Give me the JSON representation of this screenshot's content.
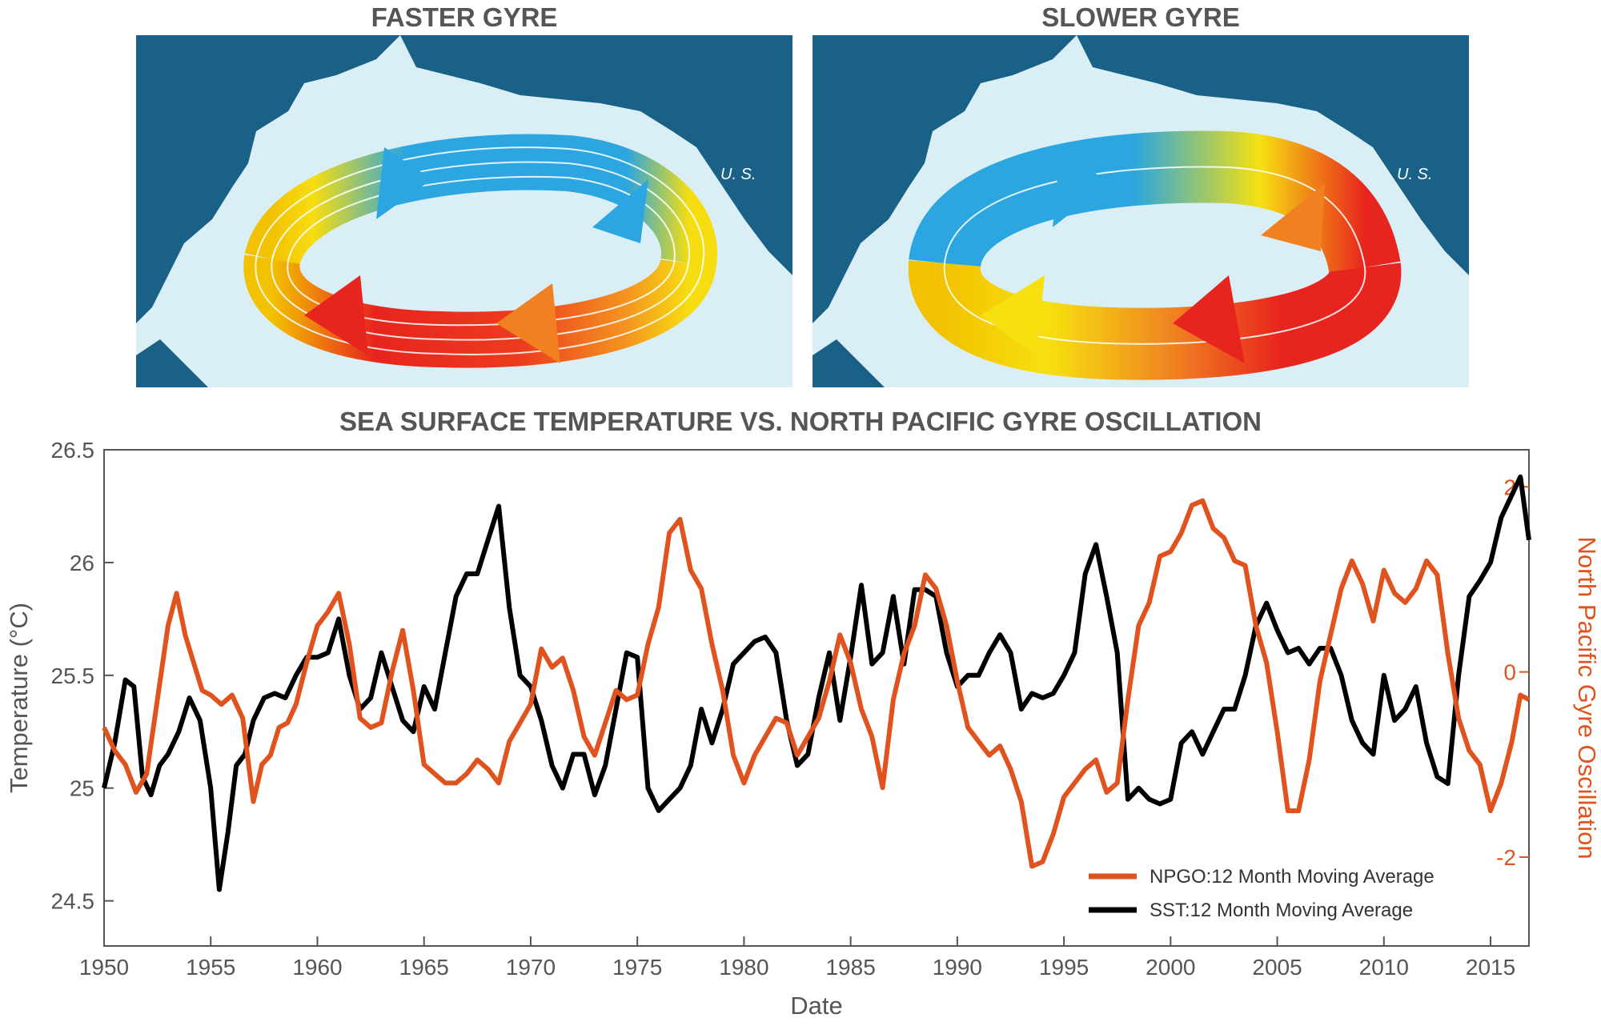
{
  "maps": [
    {
      "title": "FASTER GYRE",
      "land_label": "U. S."
    },
    {
      "title": "SLOWER GYRE",
      "land_label": "U. S."
    }
  ],
  "colors": {
    "ocean": "#daeef5",
    "land": "#1a6187",
    "npgo": "#e0531e",
    "sst": "#000000",
    "text": "#555555"
  },
  "chart_data": {
    "type": "line",
    "title": "SEA SURFACE TEMPERATURE VS. NORTH PACIFIC GYRE OSCILLATION",
    "xlabel": "Date",
    "ylabel": "Temperature (°C)",
    "ylabel_right": "North Pacific Gyre Oscillation",
    "xlim": [
      1950,
      2016.8
    ],
    "ylim": [
      24.3,
      26.5
    ],
    "ylim_right": [
      -2.96,
      2.4
    ],
    "x_ticks": [
      "1950",
      "1955",
      "1960",
      "1965",
      "1970",
      "1975",
      "1980",
      "1985",
      "1990",
      "1995",
      "2000",
      "2005",
      "2010",
      "2015"
    ],
    "y_ticks": [
      "24.5",
      "25",
      "25.5",
      "26",
      "26.5"
    ],
    "y_right_ticks": [
      "-2",
      "0",
      "2"
    ],
    "grid": false,
    "legend_position": "bottom-right",
    "series": [
      {
        "name": "SST:12 Month Moving Average",
        "axis": "left",
        "x": [
          1950.0,
          1950.5,
          1951.0,
          1951.4,
          1951.8,
          1952.2,
          1952.6,
          1953.0,
          1953.5,
          1954.0,
          1954.5,
          1955.0,
          1955.4,
          1955.8,
          1956.2,
          1956.6,
          1957.0,
          1957.5,
          1958.0,
          1958.5,
          1959.0,
          1959.5,
          1960.0,
          1960.5,
          1961.0,
          1961.5,
          1962.0,
          1962.5,
          1963.0,
          1963.5,
          1964.0,
          1964.5,
          1965.0,
          1965.5,
          1966.0,
          1966.5,
          1967.0,
          1967.5,
          1968.0,
          1968.5,
          1969.0,
          1969.5,
          1970.0,
          1970.5,
          1971.0,
          1971.5,
          1972.0,
          1972.5,
          1973.0,
          1973.5,
          1974.0,
          1974.5,
          1975.0,
          1975.5,
          1976.0,
          1976.5,
          1977.0,
          1977.5,
          1978.0,
          1978.5,
          1979.0,
          1979.5,
          1980.0,
          1980.5,
          1981.0,
          1981.5,
          1982.0,
          1982.5,
          1983.0,
          1983.5,
          1984.0,
          1984.5,
          1985.0,
          1985.5,
          1986.0,
          1986.5,
          1987.0,
          1987.5,
          1988.0,
          1988.5,
          1989.0,
          1989.5,
          1990.0,
          1990.5,
          1991.0,
          1991.5,
          1992.0,
          1992.5,
          1993.0,
          1993.5,
          1994.0,
          1994.5,
          1995.0,
          1995.5,
          1996.0,
          1996.5,
          1997.0,
          1997.5,
          1998.0,
          1998.5,
          1999.0,
          1999.5,
          2000.0,
          2000.5,
          2001.0,
          2001.5,
          2002.0,
          2002.5,
          2003.0,
          2003.5,
          2004.0,
          2004.5,
          2005.0,
          2005.5,
          2006.0,
          2006.5,
          2007.0,
          2007.5,
          2008.0,
          2008.5,
          2009.0,
          2009.5,
          2010.0,
          2010.5,
          2011.0,
          2011.5,
          2012.0,
          2012.5,
          2013.0,
          2013.5,
          2014.0,
          2014.5,
          2015.0,
          2015.5,
          2016.0,
          2016.4,
          2016.8
        ],
        "values": [
          25.0,
          25.2,
          25.48,
          25.45,
          25.05,
          24.97,
          25.1,
          25.15,
          25.25,
          25.4,
          25.3,
          25.0,
          24.55,
          24.8,
          25.1,
          25.15,
          25.3,
          25.4,
          25.42,
          25.4,
          25.5,
          25.58,
          25.58,
          25.6,
          25.75,
          25.5,
          25.35,
          25.4,
          25.6,
          25.45,
          25.3,
          25.25,
          25.45,
          25.35,
          25.6,
          25.85,
          25.95,
          25.95,
          26.1,
          26.25,
          25.8,
          25.5,
          25.45,
          25.3,
          25.1,
          25.0,
          25.15,
          25.15,
          24.97,
          25.1,
          25.35,
          25.6,
          25.58,
          25.0,
          24.9,
          24.95,
          25.0,
          25.1,
          25.35,
          25.2,
          25.35,
          25.55,
          25.6,
          25.65,
          25.67,
          25.6,
          25.3,
          25.1,
          25.15,
          25.4,
          25.6,
          25.3,
          25.58,
          25.9,
          25.55,
          25.6,
          25.85,
          25.55,
          25.88,
          25.88,
          25.85,
          25.6,
          25.45,
          25.5,
          25.5,
          25.6,
          25.68,
          25.6,
          25.35,
          25.42,
          25.4,
          25.42,
          25.5,
          25.6,
          25.95,
          26.08,
          25.85,
          25.6,
          24.95,
          25.0,
          24.95,
          24.93,
          24.95,
          25.2,
          25.25,
          25.15,
          25.25,
          25.35,
          25.35,
          25.5,
          25.72,
          25.82,
          25.7,
          25.6,
          25.62,
          25.55,
          25.62,
          25.62,
          25.5,
          25.3,
          25.2,
          25.15,
          25.5,
          25.3,
          25.35,
          25.45,
          25.2,
          25.05,
          25.02,
          25.5,
          25.85,
          25.92,
          26.0,
          26.2,
          26.3,
          26.38,
          26.1
        ],
        "color": "#000000"
      },
      {
        "name": "NPGO:12 Month Moving Average",
        "axis": "right",
        "x": [
          1950.0,
          1950.5,
          1951.0,
          1951.5,
          1952.0,
          1952.5,
          1953.0,
          1953.4,
          1953.8,
          1954.2,
          1954.6,
          1955.0,
          1955.5,
          1956.0,
          1956.5,
          1957.0,
          1957.4,
          1957.8,
          1958.2,
          1958.6,
          1959.0,
          1959.5,
          1960.0,
          1960.5,
          1961.0,
          1961.5,
          1962.0,
          1962.5,
          1963.0,
          1963.5,
          1964.0,
          1964.5,
          1965.0,
          1965.5,
          1966.0,
          1966.5,
          1967.0,
          1967.5,
          1968.0,
          1968.5,
          1969.0,
          1969.5,
          1970.0,
          1970.5,
          1971.0,
          1971.5,
          1972.0,
          1972.5,
          1973.0,
          1973.5,
          1974.0,
          1974.5,
          1975.0,
          1975.5,
          1976.0,
          1976.5,
          1977.0,
          1977.5,
          1978.0,
          1978.5,
          1979.0,
          1979.5,
          1980.0,
          1980.5,
          1981.0,
          1981.5,
          1982.0,
          1982.5,
          1983.0,
          1983.5,
          1984.0,
          1984.5,
          1985.0,
          1985.5,
          1986.0,
          1986.5,
          1987.0,
          1987.5,
          1988.0,
          1988.5,
          1989.0,
          1989.5,
          1990.0,
          1990.5,
          1991.0,
          1991.5,
          1992.0,
          1992.5,
          1993.0,
          1993.5,
          1994.0,
          1994.5,
          1995.0,
          1995.5,
          1996.0,
          1996.5,
          1997.0,
          1997.5,
          1998.0,
          1998.5,
          1999.0,
          1999.5,
          2000.0,
          2000.5,
          2001.0,
          2001.5,
          2002.0,
          2002.5,
          2003.0,
          2003.5,
          2004.0,
          2004.5,
          2005.0,
          2005.5,
          2006.0,
          2006.5,
          2007.0,
          2007.5,
          2008.0,
          2008.5,
          2009.0,
          2009.5,
          2010.0,
          2010.5,
          2011.0,
          2011.5,
          2012.0,
          2012.5,
          2013.0,
          2013.5,
          2014.0,
          2014.5,
          2015.0,
          2015.5,
          2016.0,
          2016.4,
          2016.8
        ],
        "values": [
          -0.6,
          -0.85,
          -1.0,
          -1.3,
          -1.1,
          -0.3,
          0.5,
          0.85,
          0.4,
          0.1,
          -0.2,
          -0.25,
          -0.35,
          -0.25,
          -0.5,
          -1.4,
          -1.0,
          -0.9,
          -0.6,
          -0.55,
          -0.35,
          0.1,
          0.5,
          0.65,
          0.85,
          0.3,
          -0.5,
          -0.6,
          -0.55,
          0.0,
          0.45,
          -0.2,
          -1.0,
          -1.1,
          -1.2,
          -1.2,
          -1.1,
          -0.95,
          -1.05,
          -1.2,
          -0.75,
          -0.55,
          -0.35,
          0.25,
          0.05,
          0.15,
          -0.2,
          -0.7,
          -0.9,
          -0.55,
          -0.2,
          -0.3,
          -0.25,
          0.3,
          0.7,
          1.5,
          1.65,
          1.1,
          0.9,
          0.3,
          -0.2,
          -0.9,
          -1.2,
          -0.9,
          -0.7,
          -0.5,
          -0.55,
          -0.9,
          -0.7,
          -0.5,
          -0.1,
          0.4,
          0.1,
          -0.4,
          -0.7,
          -1.25,
          -0.3,
          0.2,
          0.5,
          1.05,
          0.9,
          0.5,
          -0.1,
          -0.6,
          -0.75,
          -0.9,
          -0.8,
          -1.05,
          -1.4,
          -2.1,
          -2.05,
          -1.75,
          -1.35,
          -1.2,
          -1.05,
          -0.95,
          -1.3,
          -1.2,
          -0.3,
          0.5,
          0.75,
          1.25,
          1.3,
          1.5,
          1.8,
          1.85,
          1.55,
          1.45,
          1.2,
          1.15,
          0.5,
          0.1,
          -0.65,
          -1.5,
          -1.5,
          -0.95,
          -0.1,
          0.4,
          0.9,
          1.2,
          0.95,
          0.55,
          1.1,
          0.85,
          0.75,
          0.9,
          1.2,
          1.05,
          0.2,
          -0.5,
          -0.85,
          -1.0,
          -1.5,
          -1.2,
          -0.75,
          -0.25,
          -0.3
        ]
      }
    ]
  }
}
